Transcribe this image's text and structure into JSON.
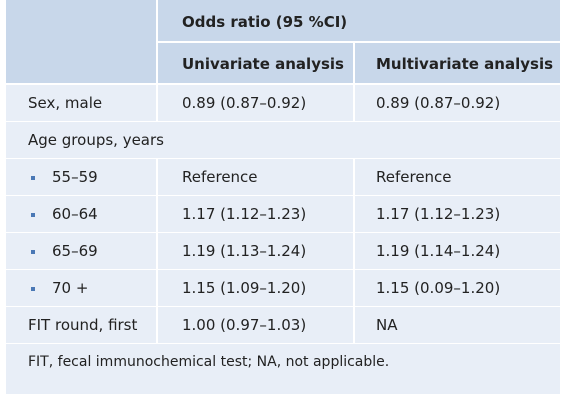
{
  "header": {
    "group_label": "Odds ratio (95 %CI)",
    "col_univariate": "Univariate analysis",
    "col_multivariate": "Multivariate analysis"
  },
  "rows": [
    {
      "label": "Sex, male",
      "uni": "0.89 (0.87–0.92)",
      "multi": "0.89 (0.87–0.92)"
    },
    {
      "label": "Age groups, years",
      "uni": "",
      "multi": ""
    },
    {
      "label": "55–59",
      "uni": "Reference",
      "multi": "Reference"
    },
    {
      "label": "60–64",
      "uni": "1.17 (1.12–1.23)",
      "multi": "1.17 (1.12–1.23)"
    },
    {
      "label": "65–69",
      "uni": "1.19 (1.13–1.24)",
      "multi": "1.19 (1.14–1.24)"
    },
    {
      "label": "70 +",
      "uni": "1.15 (1.09–1.20)",
      "multi": "1.15 (0.09–1.20)"
    },
    {
      "label": "FIT round, first",
      "uni": "1.00 (0.97–1.03)",
      "multi": "NA"
    }
  ],
  "footnote": "FIT, fecal immunochemical test; NA, not applicable.",
  "colors": {
    "header_bg": "#c8d7ea",
    "body_bg": "#e8eef7",
    "bullet": "#4a78b5"
  }
}
